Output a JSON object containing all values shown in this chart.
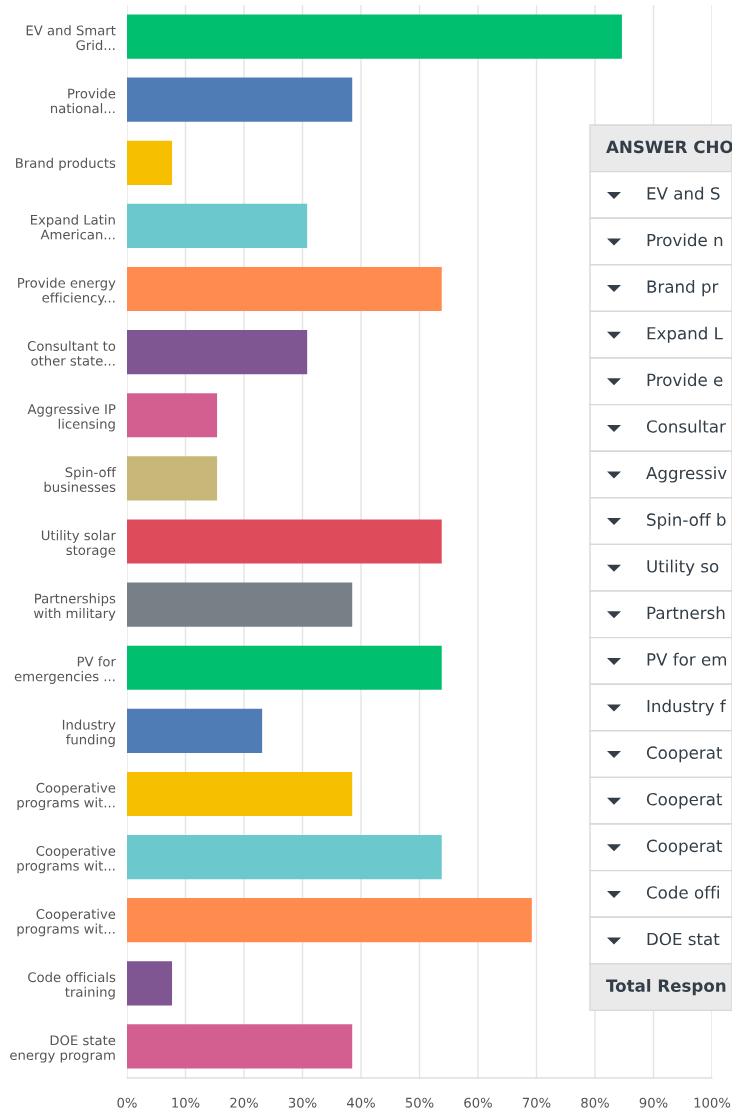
{
  "chart_data": {
    "type": "bar",
    "orientation": "horizontal",
    "categories": [
      "EV and Smart\nGrid...",
      "Provide\nnational...",
      "Brand products",
      "Expand Latin\nAmerican...",
      "Provide energy\nefficiency...",
      "Consultant to\nother state...",
      "Aggressive IP\nlicensing",
      "Spin-off\nbusinesses",
      "Utility solar\nstorage",
      "Partnerships\nwith military",
      "PV for\nemergencies ...",
      "Industry\nfunding",
      "Cooperative\nprograms wit...",
      "Cooperative\nprograms wit...",
      "Cooperative\nprograms wit...",
      "Code officials\ntraining",
      "DOE state\nenergy program"
    ],
    "values": [
      84.6,
      38.5,
      7.7,
      30.8,
      53.8,
      30.8,
      15.4,
      15.4,
      53.8,
      38.5,
      53.8,
      23.1,
      38.5,
      53.8,
      69.2,
      7.7,
      38.5
    ],
    "colors": [
      "#00bf6f",
      "#507cb6",
      "#f6bf00",
      "#6bc8cd",
      "#ff8b4f",
      "#7f5691",
      "#d25f90",
      "#c7b879",
      "#de4c5c",
      "#768086",
      "#00bf6f",
      "#507cb6",
      "#f6bf00",
      "#6bc8cd",
      "#ff8b4f",
      "#7f5691",
      "#d25f90"
    ],
    "xlim": [
      0,
      100
    ],
    "xticks": [
      {
        "value": 0,
        "label": "0%"
      },
      {
        "value": 10,
        "label": "10%"
      },
      {
        "value": 20,
        "label": "20%"
      },
      {
        "value": 30,
        "label": "30%"
      },
      {
        "value": 40,
        "label": "40%"
      },
      {
        "value": 50,
        "label": "50%"
      },
      {
        "value": 60,
        "label": "60%"
      },
      {
        "value": 70,
        "label": "70%"
      },
      {
        "value": 80,
        "label": "80%"
      },
      {
        "value": 90,
        "label": "90%"
      },
      {
        "value": 100,
        "label": "100%"
      }
    ],
    "grid": "x",
    "annotations": [
      "ANSWER CHO",
      "EV and S",
      "Provide n",
      "Brand pr",
      "Expand L",
      "Provide e",
      "Consultar",
      "Aggressiv",
      "Spin-off b",
      "Utility so",
      "Partnersh",
      "PV for em",
      "Industry f",
      "Cooperat",
      "Cooperat",
      "Cooperat",
      "Code offi",
      "DOE stat",
      "Total Respon"
    ]
  }
}
